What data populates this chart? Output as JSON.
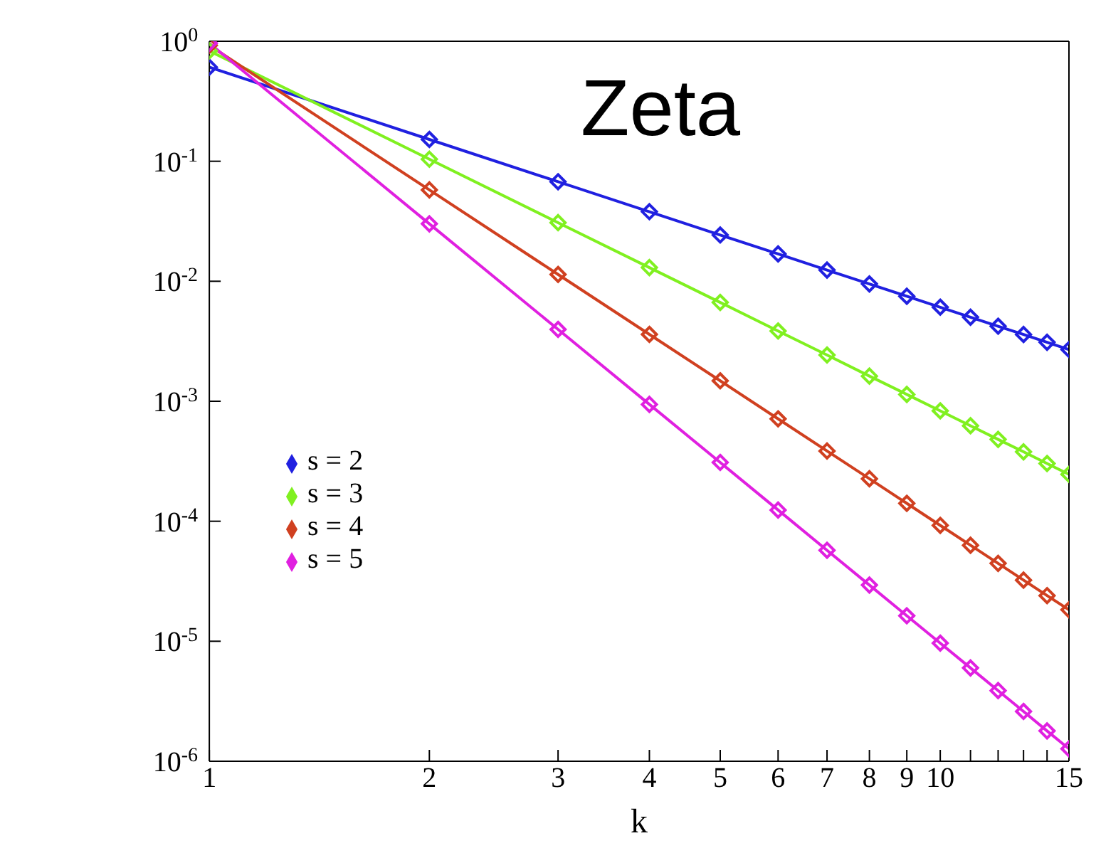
{
  "chart_data": {
    "type": "line",
    "title": "Zeta",
    "xlabel": "k",
    "log": "xy",
    "grid": false,
    "legend": "left",
    "marker": "diamond",
    "line_style": "solid",
    "x": [
      1,
      2,
      3,
      4,
      5,
      6,
      7,
      8,
      9,
      10,
      11,
      12,
      13,
      14,
      15
    ],
    "xlim": [
      1,
      15
    ],
    "xticks": [
      1,
      2,
      3,
      4,
      5,
      6,
      7,
      8,
      9,
      10,
      {
        "value": 11,
        "label": null
      },
      {
        "value": 12,
        "label": null
      },
      {
        "value": 13,
        "label": null
      },
      {
        "value": 14,
        "label": null
      },
      15
    ],
    "ylim": [
      1e-06,
      1
    ],
    "yticks": [
      {
        "value": 1e-06,
        "label": "10$^{-6}$"
      },
      {
        "value": 1e-05,
        "label": "10$^{-5}$"
      },
      {
        "value": 0.0001,
        "label": "10$^{-4}$"
      },
      {
        "value": 0.001,
        "label": "10$^{-3}$"
      },
      {
        "value": 0.01,
        "label": "10$^{-2}$"
      },
      {
        "value": 0.1,
        "label": "10$^{-1}$"
      },
      {
        "value": 1,
        "label": "10$^{0}$"
      }
    ],
    "series": [
      {
        "name": "s = 2",
        "color": "#2020e0",
        "values": [
          0.608,
          0.152,
          0.0675,
          0.038,
          0.0243,
          0.0169,
          0.0124,
          0.0095,
          0.0075,
          0.00608,
          0.00502,
          0.00422,
          0.0036,
          0.0031,
          0.0027
        ]
      },
      {
        "name": "s = 3",
        "color": "#80f020",
        "values": [
          0.832,
          0.104,
          0.0308,
          0.013,
          0.00666,
          0.00385,
          0.00243,
          0.00162,
          0.00114,
          0.000832,
          0.000625,
          0.000481,
          0.000379,
          0.000303,
          0.000246
        ]
      },
      {
        "name": "s = 4",
        "color": "#d04020",
        "values": [
          0.924,
          0.0577,
          0.0114,
          0.00361,
          0.00148,
          0.000713,
          0.000385,
          0.000226,
          0.000141,
          9.24e-05,
          6.31e-05,
          4.46e-05,
          3.23e-05,
          2.4e-05,
          1.83e-05
        ]
      },
      {
        "name": "s = 5",
        "color": "#e020e0",
        "values": [
          0.964,
          0.0301,
          0.00397,
          0.000942,
          0.000309,
          0.000124,
          5.73e-05,
          2.94e-05,
          1.63e-05,
          9.64e-06,
          5.99e-06,
          3.88e-06,
          2.6e-06,
          1.79e-06,
          1.27e-06
        ]
      }
    ]
  }
}
